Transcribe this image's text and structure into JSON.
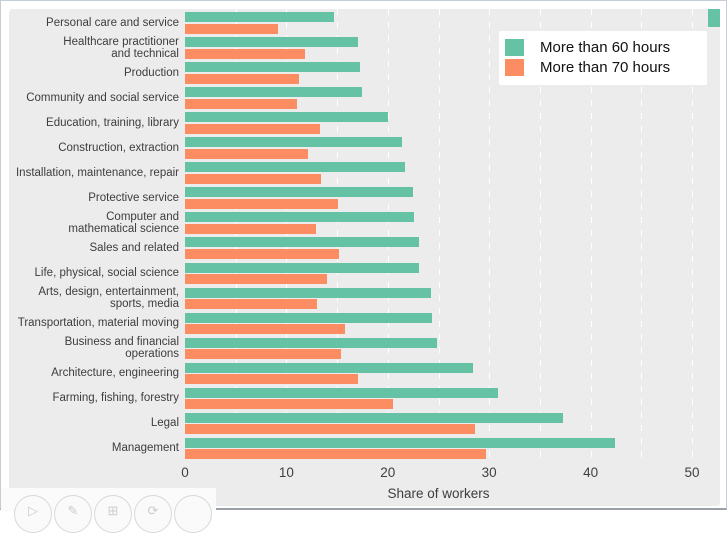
{
  "page": {
    "background": "#ffffff",
    "panel_background": "#ececec",
    "grid_color": "#ffffff",
    "text_color": "#3d3d3d",
    "accent_teal": "#66C2A5",
    "accent_orange": "#FC8D62"
  },
  "legend": {
    "items": [
      {
        "label": "More than 60 hours",
        "color": "#66C2A5"
      },
      {
        "label": "More than 70 hours",
        "color": "#FC8D62"
      }
    ]
  },
  "chart_data": {
    "type": "bar",
    "orientation": "horizontal",
    "title": "",
    "xlabel": "Share of workers",
    "ylabel": "",
    "xlim": [
      0,
      50
    ],
    "x_ticks": [
      0,
      10,
      20,
      30,
      40,
      50
    ],
    "gridlines_every": 5,
    "grid_on": true,
    "legend_position": "top-right",
    "categories": [
      {
        "label": "Personal care and service",
        "lines": [
          "Personal care and service"
        ]
      },
      {
        "label": "Healthcare practitioner and technical",
        "lines": [
          "Healthcare practitioner",
          "and technical"
        ]
      },
      {
        "label": "Production",
        "lines": [
          "Production"
        ]
      },
      {
        "label": "Community and social service",
        "lines": [
          "Community and social service"
        ]
      },
      {
        "label": "Education, training, library",
        "lines": [
          "Education, training, library"
        ]
      },
      {
        "label": "Construction, extraction",
        "lines": [
          "Construction, extraction"
        ]
      },
      {
        "label": "Installation, maintenance, repair",
        "lines": [
          "Installation, maintenance, repair"
        ]
      },
      {
        "label": "Protective service",
        "lines": [
          "Protective service"
        ]
      },
      {
        "label": "Computer and mathematical science",
        "lines": [
          "Computer and",
          "mathematical science"
        ]
      },
      {
        "label": "Sales and related",
        "lines": [
          "Sales and related"
        ]
      },
      {
        "label": "Life, physical, social science",
        "lines": [
          "Life, physical, social science"
        ]
      },
      {
        "label": "Arts, design, entertainment, sports, media",
        "lines": [
          "Arts, design, entertainment,",
          "sports, media"
        ]
      },
      {
        "label": "Transportation, material moving",
        "lines": [
          "Transportation, material moving"
        ]
      },
      {
        "label": "Business and financial operations",
        "lines": [
          "Business and financial operations"
        ]
      },
      {
        "label": "Architecture, engineering",
        "lines": [
          "Architecture, engineering"
        ]
      },
      {
        "label": "Farming, fishing, forestry",
        "lines": [
          "Farming, fishing, forestry"
        ]
      },
      {
        "label": "Legal",
        "lines": [
          "Legal"
        ]
      },
      {
        "label": "Management",
        "lines": [
          "Management"
        ]
      }
    ],
    "series": [
      {
        "name": "More than 60 hours",
        "color": "#66C2A5",
        "values": [
          14.7,
          17.1,
          17.3,
          17.5,
          20.0,
          21.4,
          21.7,
          22.5,
          22.6,
          23.1,
          23.1,
          24.3,
          24.4,
          24.9,
          28.4,
          30.9,
          37.3,
          42.4
        ]
      },
      {
        "name": "More than 70 hours",
        "color": "#FC8D62",
        "values": [
          9.2,
          11.8,
          11.2,
          11.0,
          13.3,
          12.1,
          13.4,
          15.1,
          12.9,
          15.2,
          14.0,
          13.0,
          15.8,
          15.4,
          17.1,
          20.5,
          28.6,
          29.7
        ]
      }
    ]
  },
  "toolbar": {
    "icons": [
      {
        "name": "play-icon",
        "glyph": "▷"
      },
      {
        "name": "pencil-icon",
        "glyph": "✎"
      },
      {
        "name": "image-icon",
        "glyph": "⊞"
      },
      {
        "name": "refresh-icon",
        "glyph": "⟳"
      },
      {
        "name": "blank-icon",
        "glyph": ""
      }
    ]
  }
}
